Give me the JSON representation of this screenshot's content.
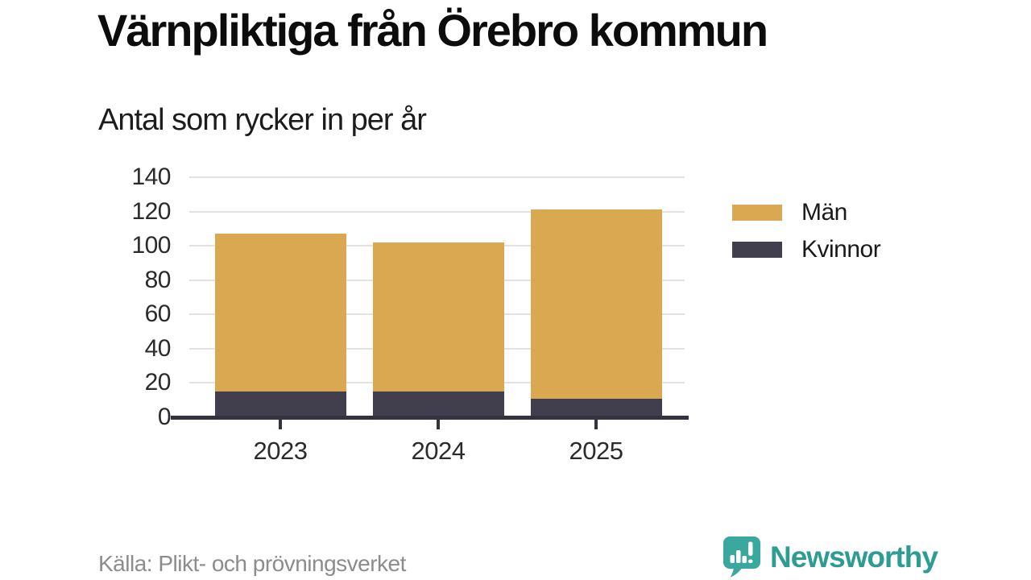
{
  "header": {
    "title": "Värnpliktiga från Örebro kommun",
    "subtitle": "Antal som rycker in per år"
  },
  "chart_data": {
    "type": "bar",
    "stacked": true,
    "title": "Värnpliktiga från Örebro kommun",
    "subtitle": "Antal som rycker in per år",
    "categories": [
      "2023",
      "2024",
      "2025"
    ],
    "series": [
      {
        "name": "Män",
        "color": "#d9a851",
        "values": [
          92,
          87,
          110
        ]
      },
      {
        "name": "Kvinnor",
        "color": "#413f4e",
        "values": [
          15,
          15,
          11
        ]
      }
    ],
    "stack_order_bottom_to_top": [
      "Kvinnor",
      "Män"
    ],
    "totals": [
      107,
      102,
      121
    ],
    "xlabel": "",
    "ylabel": "",
    "ylim": [
      0,
      140
    ],
    "yticks": [
      0,
      20,
      40,
      60,
      80,
      100,
      120,
      140
    ],
    "grid": "horizontal",
    "legend_position": "right",
    "colors": {
      "grid": "#e2e2e2",
      "axis": "#35323f",
      "tick_label": "#2b2b2b"
    }
  },
  "footer": {
    "source": "Källa: Plikt- och prövningsverket",
    "brand": "Newsworthy",
    "brand_color": "#2d9c93",
    "logo_color": "#3aa89e"
  }
}
